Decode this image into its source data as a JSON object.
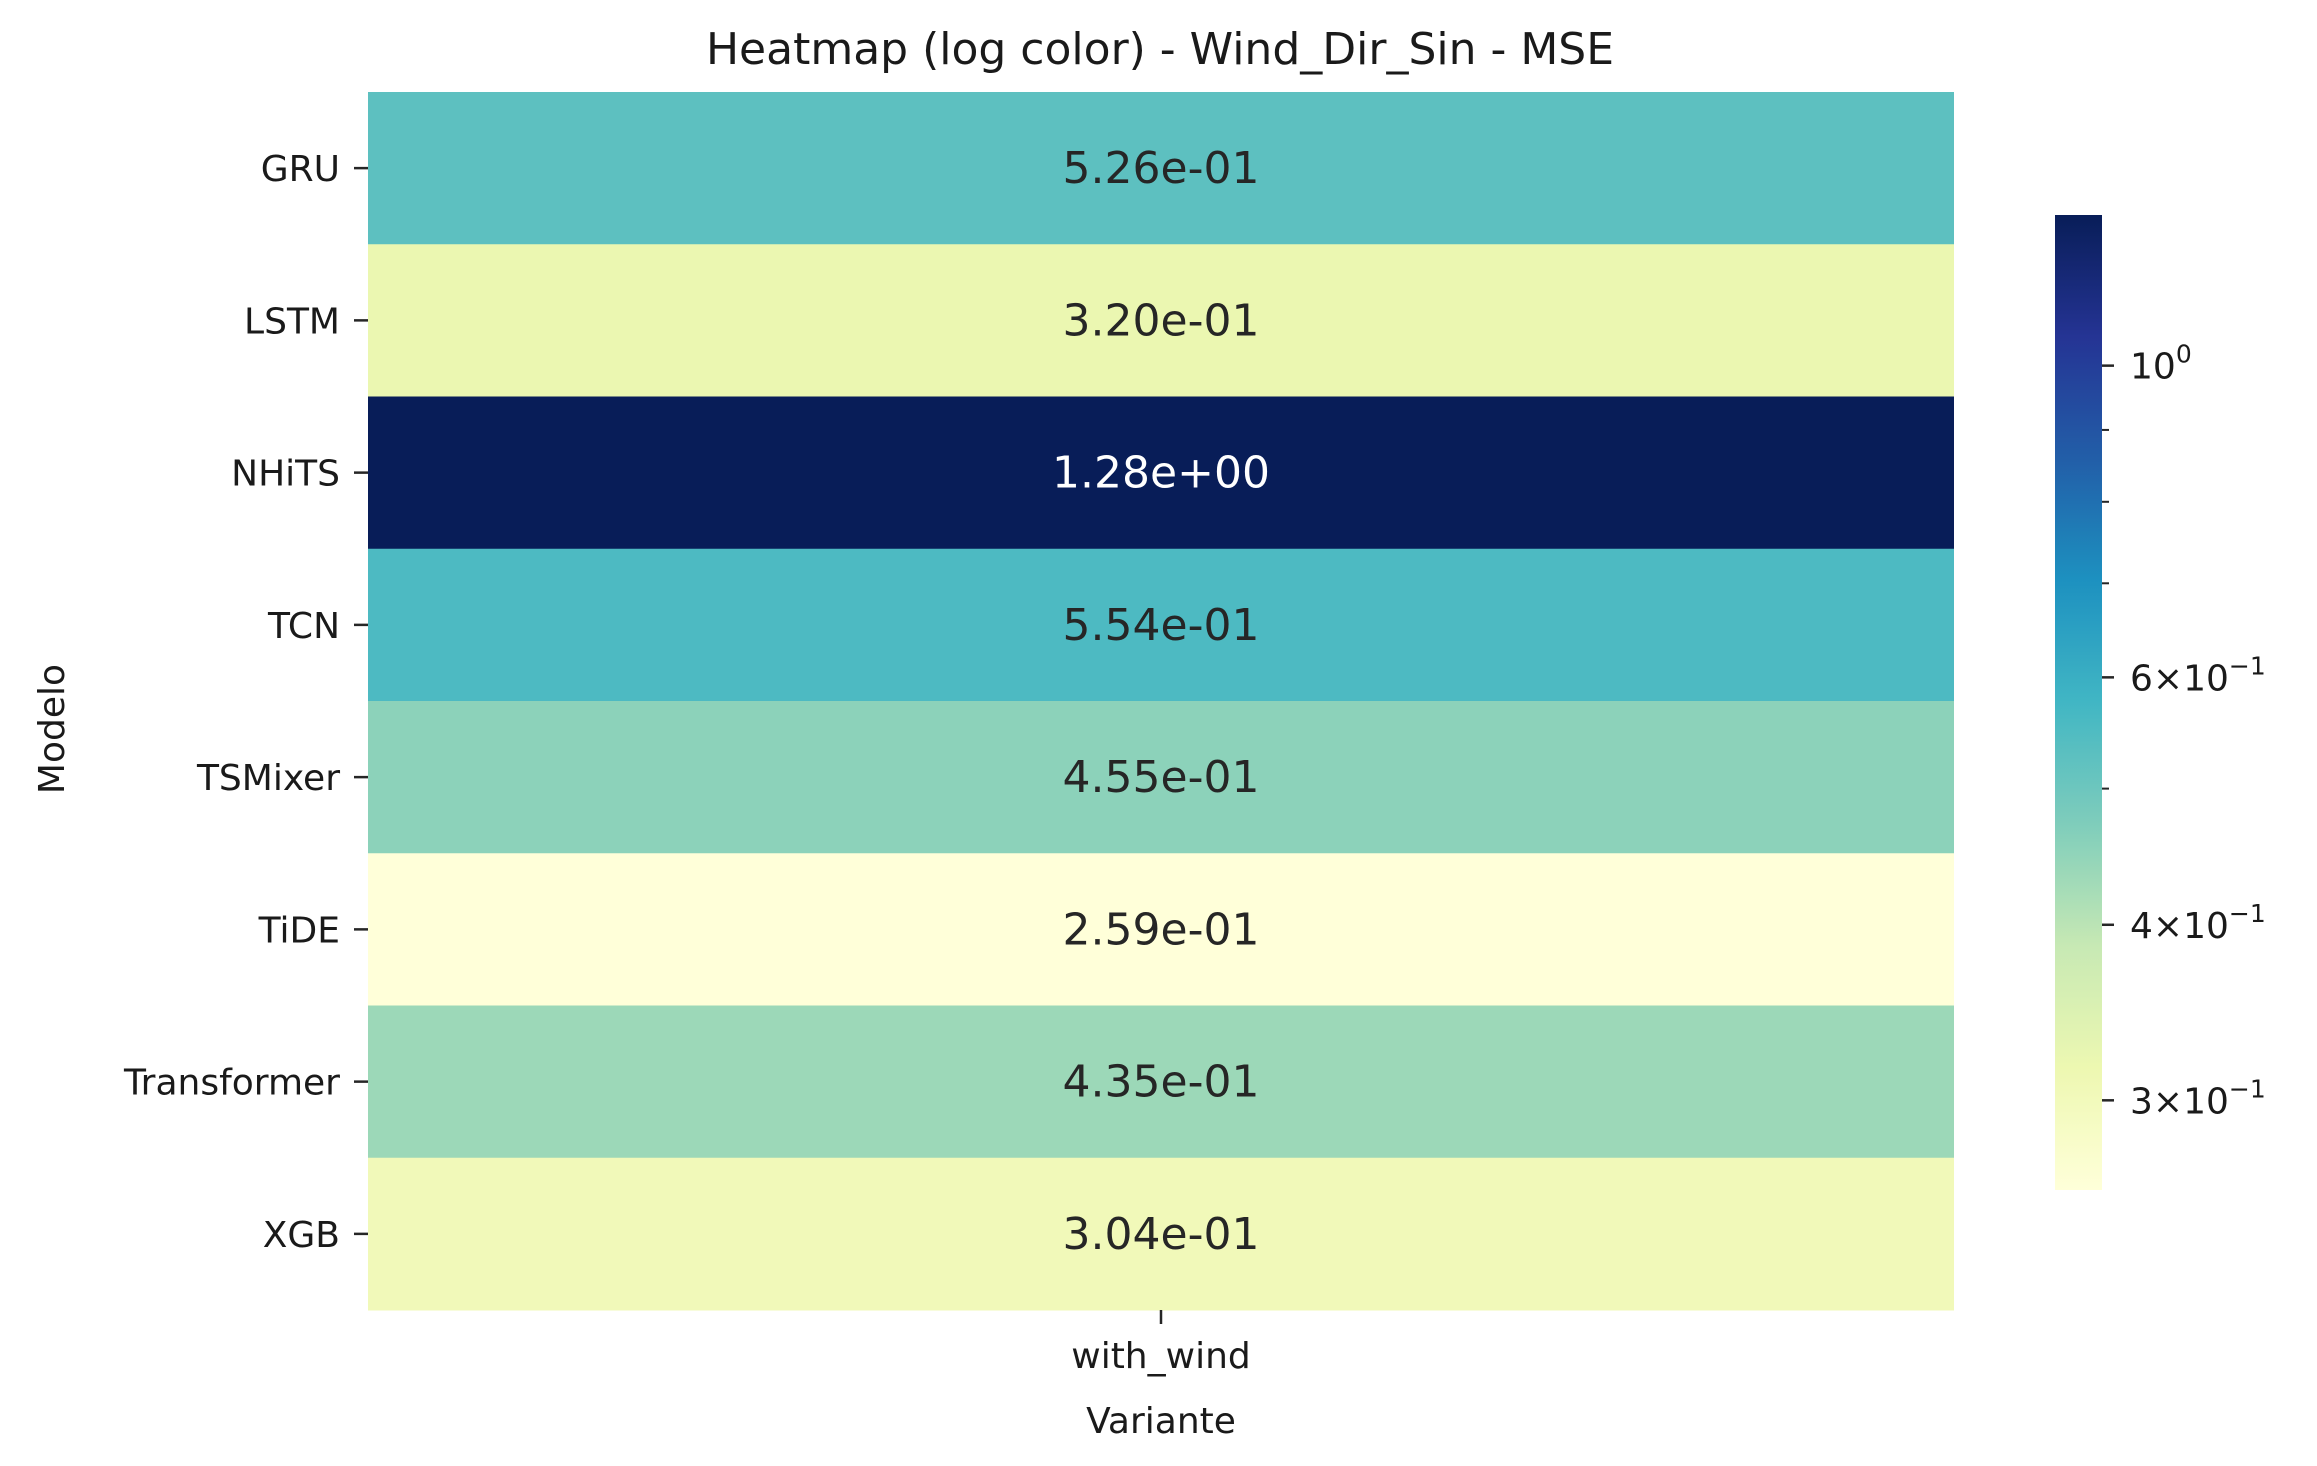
{
  "chart_data": {
    "type": "heatmap",
    "title": "Heatmap (log color) - Wind_Dir_Sin - MSE",
    "xlabel": "Variante",
    "ylabel": "Modelo",
    "x_categories": [
      "with_wind"
    ],
    "y_categories": [
      "GRU",
      "LSTM",
      "NHiTS",
      "TCN",
      "TSMixer",
      "TiDE",
      "Transformer",
      "XGB"
    ],
    "values": [
      0.526,
      0.32,
      1.28,
      0.554,
      0.455,
      0.259,
      0.435,
      0.304
    ],
    "cell_labels": [
      "5.26e-01",
      "3.20e-01",
      "1.28e+00",
      "5.54e-01",
      "4.55e-01",
      "2.59e-01",
      "4.35e-01",
      "3.04e-01"
    ],
    "colormap": "YlGnBu",
    "color_scale": "log",
    "color_range": [
      0.259,
      1.28
    ],
    "colorbar_ticks": [
      {
        "value": 1.0,
        "mantissa": "",
        "exponent": "0"
      },
      {
        "value": 0.6,
        "mantissa": "6",
        "exponent": "−1"
      },
      {
        "value": 0.4,
        "mantissa": "4",
        "exponent": "−1"
      },
      {
        "value": 0.3,
        "mantissa": "3",
        "exponent": "−1"
      }
    ],
    "colorbar_minor_ticks": [
      0.9,
      0.8,
      0.7,
      0.5
    ],
    "grid": false,
    "legend": "colorbar-right"
  }
}
